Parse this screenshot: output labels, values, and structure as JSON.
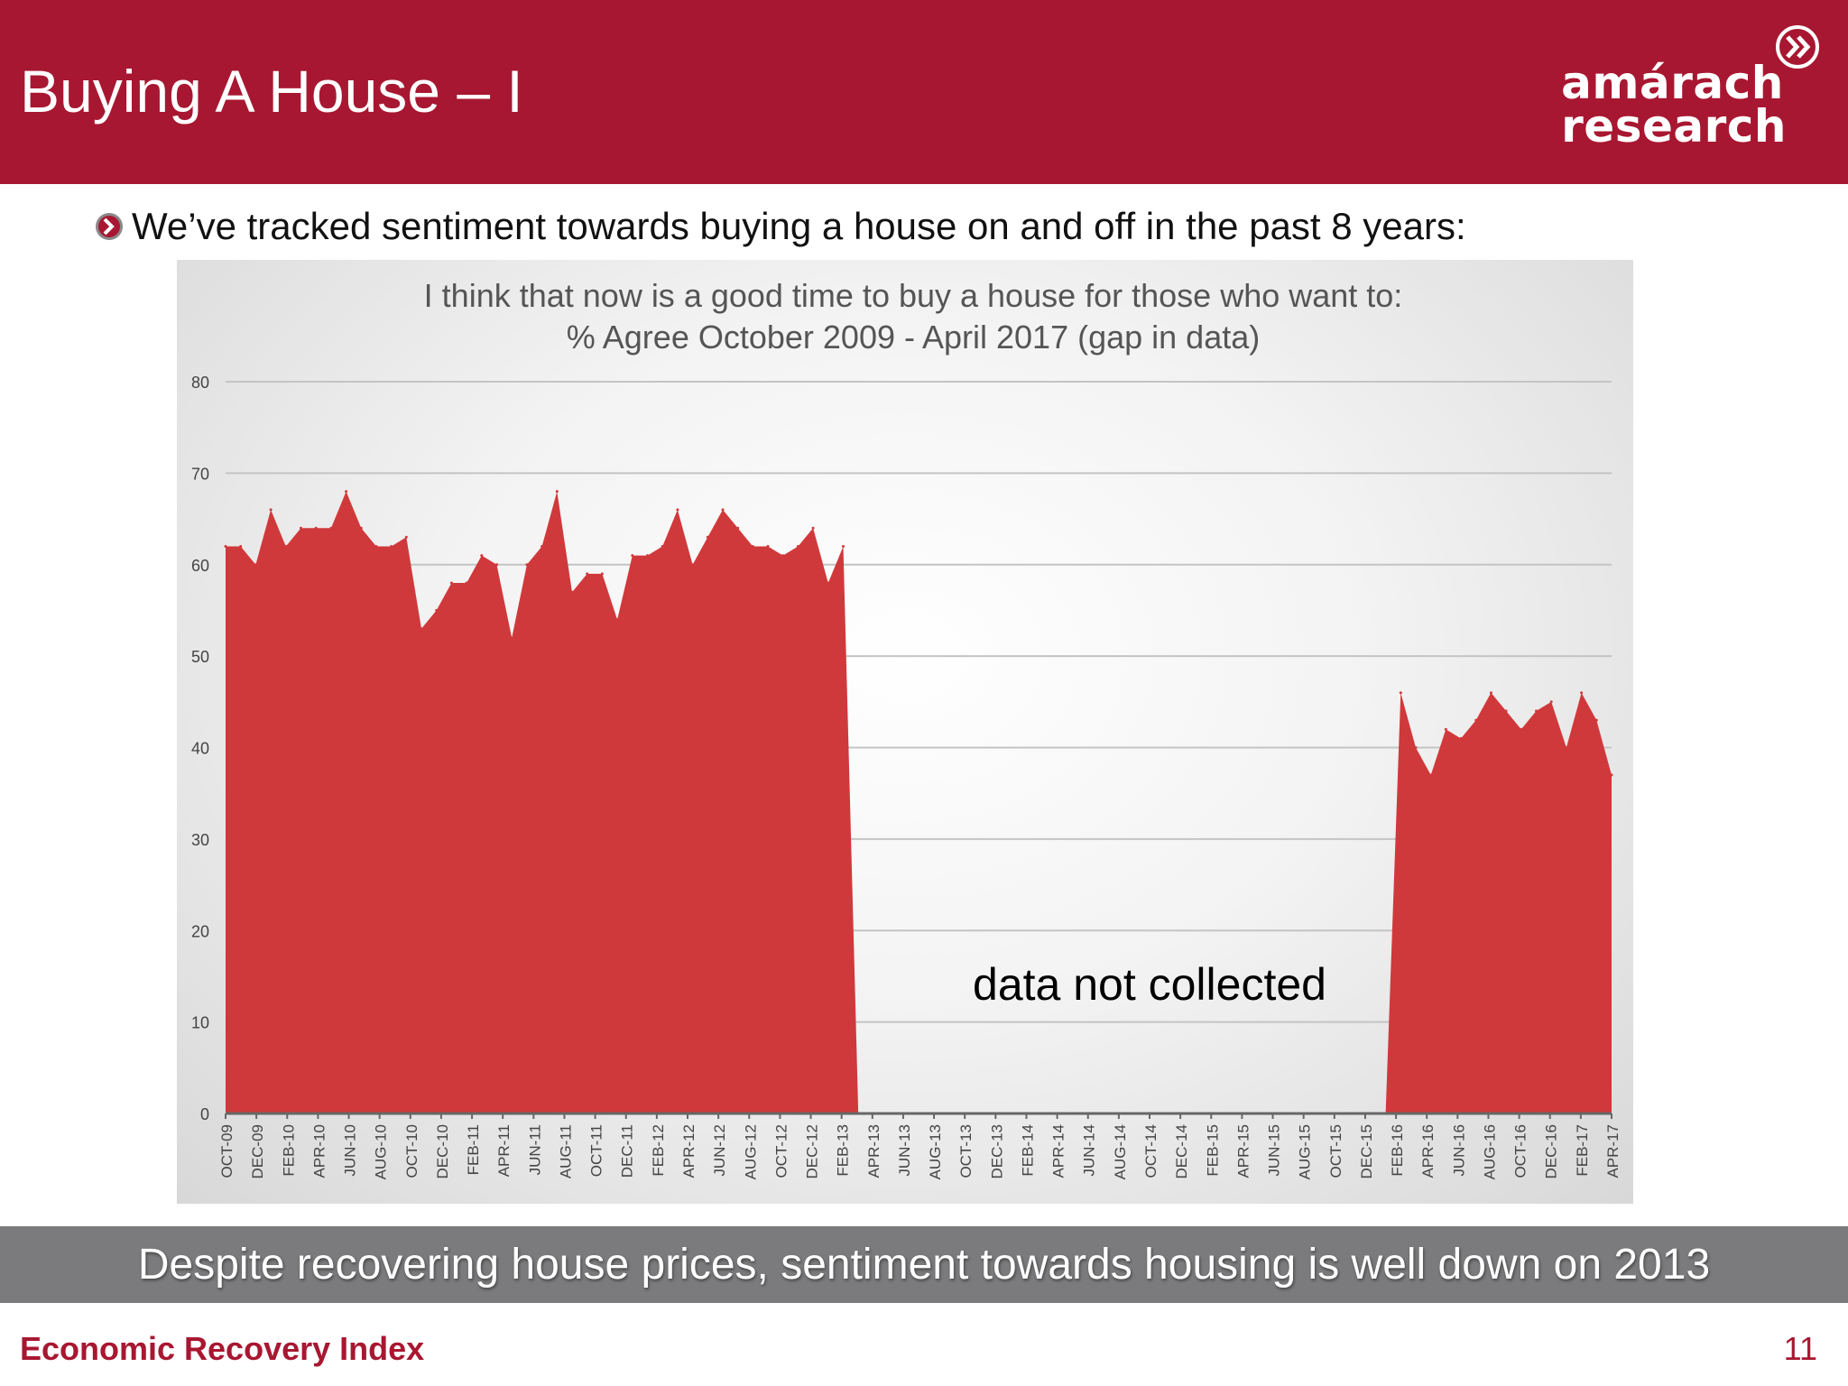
{
  "slide": {
    "title": "Buying A House – I",
    "intro": "We’ve tracked sentiment towards buying a house on and off in the past 8 years:",
    "banner": "Despite recovering house prices, sentiment towards housing is well down on 2013",
    "footer_title": "Economic Recovery Index",
    "page_number": "11",
    "accent_color": "#a81731",
    "banner_color": "#7b7b7d"
  },
  "logo": {
    "line1": "amárach",
    "line2": "research",
    "icon": "double-chevron-circle-icon"
  },
  "chart_data": {
    "type": "area",
    "title_line1": "I think that now is a good time to buy a house for those who want to:",
    "title_line2": "% Agree October 2009 - April 2017 (gap in data)",
    "annotation": "data not collected",
    "y_ticks": [
      0,
      10,
      20,
      30,
      40,
      50,
      60,
      70,
      80
    ],
    "ylim": [
      0,
      80
    ],
    "x_tick_labels": [
      "OCT-09",
      "DEC-09",
      "FEB-10",
      "APR-10",
      "JUN-10",
      "AUG-10",
      "OCT-10",
      "DEC-10",
      "FEB-11",
      "APR-11",
      "JUN-11",
      "AUG-11",
      "OCT-11",
      "DEC-11",
      "FEB-12",
      "APR-12",
      "JUN-12",
      "AUG-12",
      "OCT-12",
      "DEC-12",
      "FEB-13",
      "APR-13",
      "JUN-13",
      "AUG-13",
      "OCT-13",
      "DEC-13",
      "FEB-14",
      "APR-14",
      "JUN-14",
      "AUG-14",
      "OCT-14",
      "DEC-14",
      "FEB-15",
      "APR-15",
      "JUN-15",
      "AUG-15",
      "OCT-15",
      "DEC-15",
      "FEB-16",
      "APR-16",
      "JUN-16",
      "AUG-16",
      "OCT-16",
      "DEC-16",
      "FEB-17",
      "APR-17"
    ],
    "color": "#d0393b",
    "grid": true,
    "legend": false,
    "series": [
      {
        "values": [
          62,
          62,
          60,
          66,
          62,
          64,
          64,
          64,
          68,
          64,
          62,
          62,
          63,
          53,
          55,
          58,
          58,
          61,
          60,
          52,
          60,
          62,
          68,
          57,
          59,
          59,
          54,
          61,
          61,
          62,
          66,
          60,
          63,
          66,
          64,
          62,
          62,
          61,
          62,
          64,
          58,
          62,
          0,
          0,
          0,
          0,
          0,
          0,
          0,
          0,
          0,
          0,
          0,
          0,
          0,
          0,
          0,
          0,
          0,
          0,
          0,
          0,
          0,
          0,
          0,
          0,
          0,
          0,
          0,
          0,
          0,
          0,
          0,
          0,
          0,
          0,
          0,
          0,
          46,
          40,
          37,
          42,
          41,
          43,
          46,
          44,
          42,
          44,
          45,
          40,
          46,
          43,
          37
        ]
      }
    ]
  }
}
